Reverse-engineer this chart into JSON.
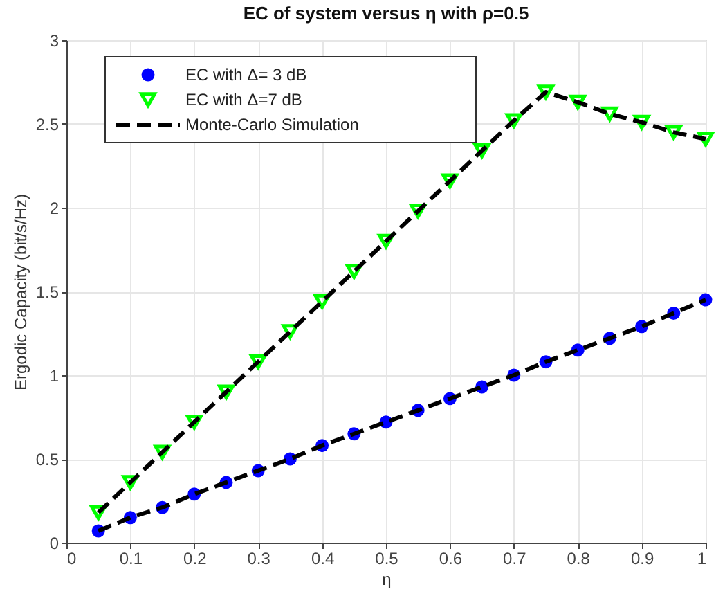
{
  "chart_data": {
    "type": "scatter",
    "title": "EC of system versus η with ρ=0.5",
    "xlabel": "η",
    "ylabel": "Ergodic Capacity (bit/s/Hz)",
    "x": [
      0.05,
      0.1,
      0.15,
      0.2,
      0.25,
      0.3,
      0.35,
      0.4,
      0.45,
      0.5,
      0.55,
      0.6,
      0.65,
      0.7,
      0.75,
      0.8,
      0.85,
      0.9,
      0.95,
      1.0
    ],
    "series": [
      {
        "name": "EC with Δ= 3 dB",
        "marker": "circle",
        "color": "#0000ff",
        "values": [
          0.07,
          0.15,
          0.21,
          0.29,
          0.36,
          0.43,
          0.5,
          0.58,
          0.65,
          0.72,
          0.79,
          0.86,
          0.93,
          1.0,
          1.08,
          1.15,
          1.22,
          1.29,
          1.37,
          1.45
        ]
      },
      {
        "name": "EC with Δ=7 dB",
        "marker": "triangle",
        "color": "#00ff00",
        "values": [
          0.18,
          0.36,
          0.54,
          0.72,
          0.9,
          1.08,
          1.26,
          1.44,
          1.62,
          1.8,
          1.98,
          2.16,
          2.34,
          2.52,
          2.69,
          2.63,
          2.56,
          2.51,
          2.45,
          2.41
        ]
      },
      {
        "name": "Monte-Carlo Simulation",
        "type": "line",
        "line_style": "dashed",
        "color": "#000000",
        "values": [
          0.07,
          0.15,
          0.21,
          0.29,
          0.36,
          0.43,
          0.5,
          0.58,
          0.65,
          0.72,
          0.79,
          0.86,
          0.93,
          1.0,
          1.08,
          1.15,
          1.22,
          1.29,
          1.37,
          1.45
        ]
      },
      {
        "type": "line",
        "line_style": "dashed",
        "color": "#000000",
        "values": [
          0.18,
          0.36,
          0.54,
          0.72,
          0.9,
          1.08,
          1.26,
          1.44,
          1.62,
          1.8,
          1.98,
          2.16,
          2.34,
          2.52,
          2.69,
          2.63,
          2.56,
          2.51,
          2.45,
          2.41
        ]
      }
    ],
    "xlim": [
      0,
      1
    ],
    "xticks": [
      0,
      0.1,
      0.2,
      0.3,
      0.4,
      0.5,
      0.6,
      0.7,
      0.8,
      0.9,
      1
    ],
    "ylim": [
      0,
      3
    ],
    "yticks": [
      0,
      0.5,
      1,
      1.5,
      2,
      2.5,
      3
    ],
    "grid": true,
    "legend": "top left"
  }
}
